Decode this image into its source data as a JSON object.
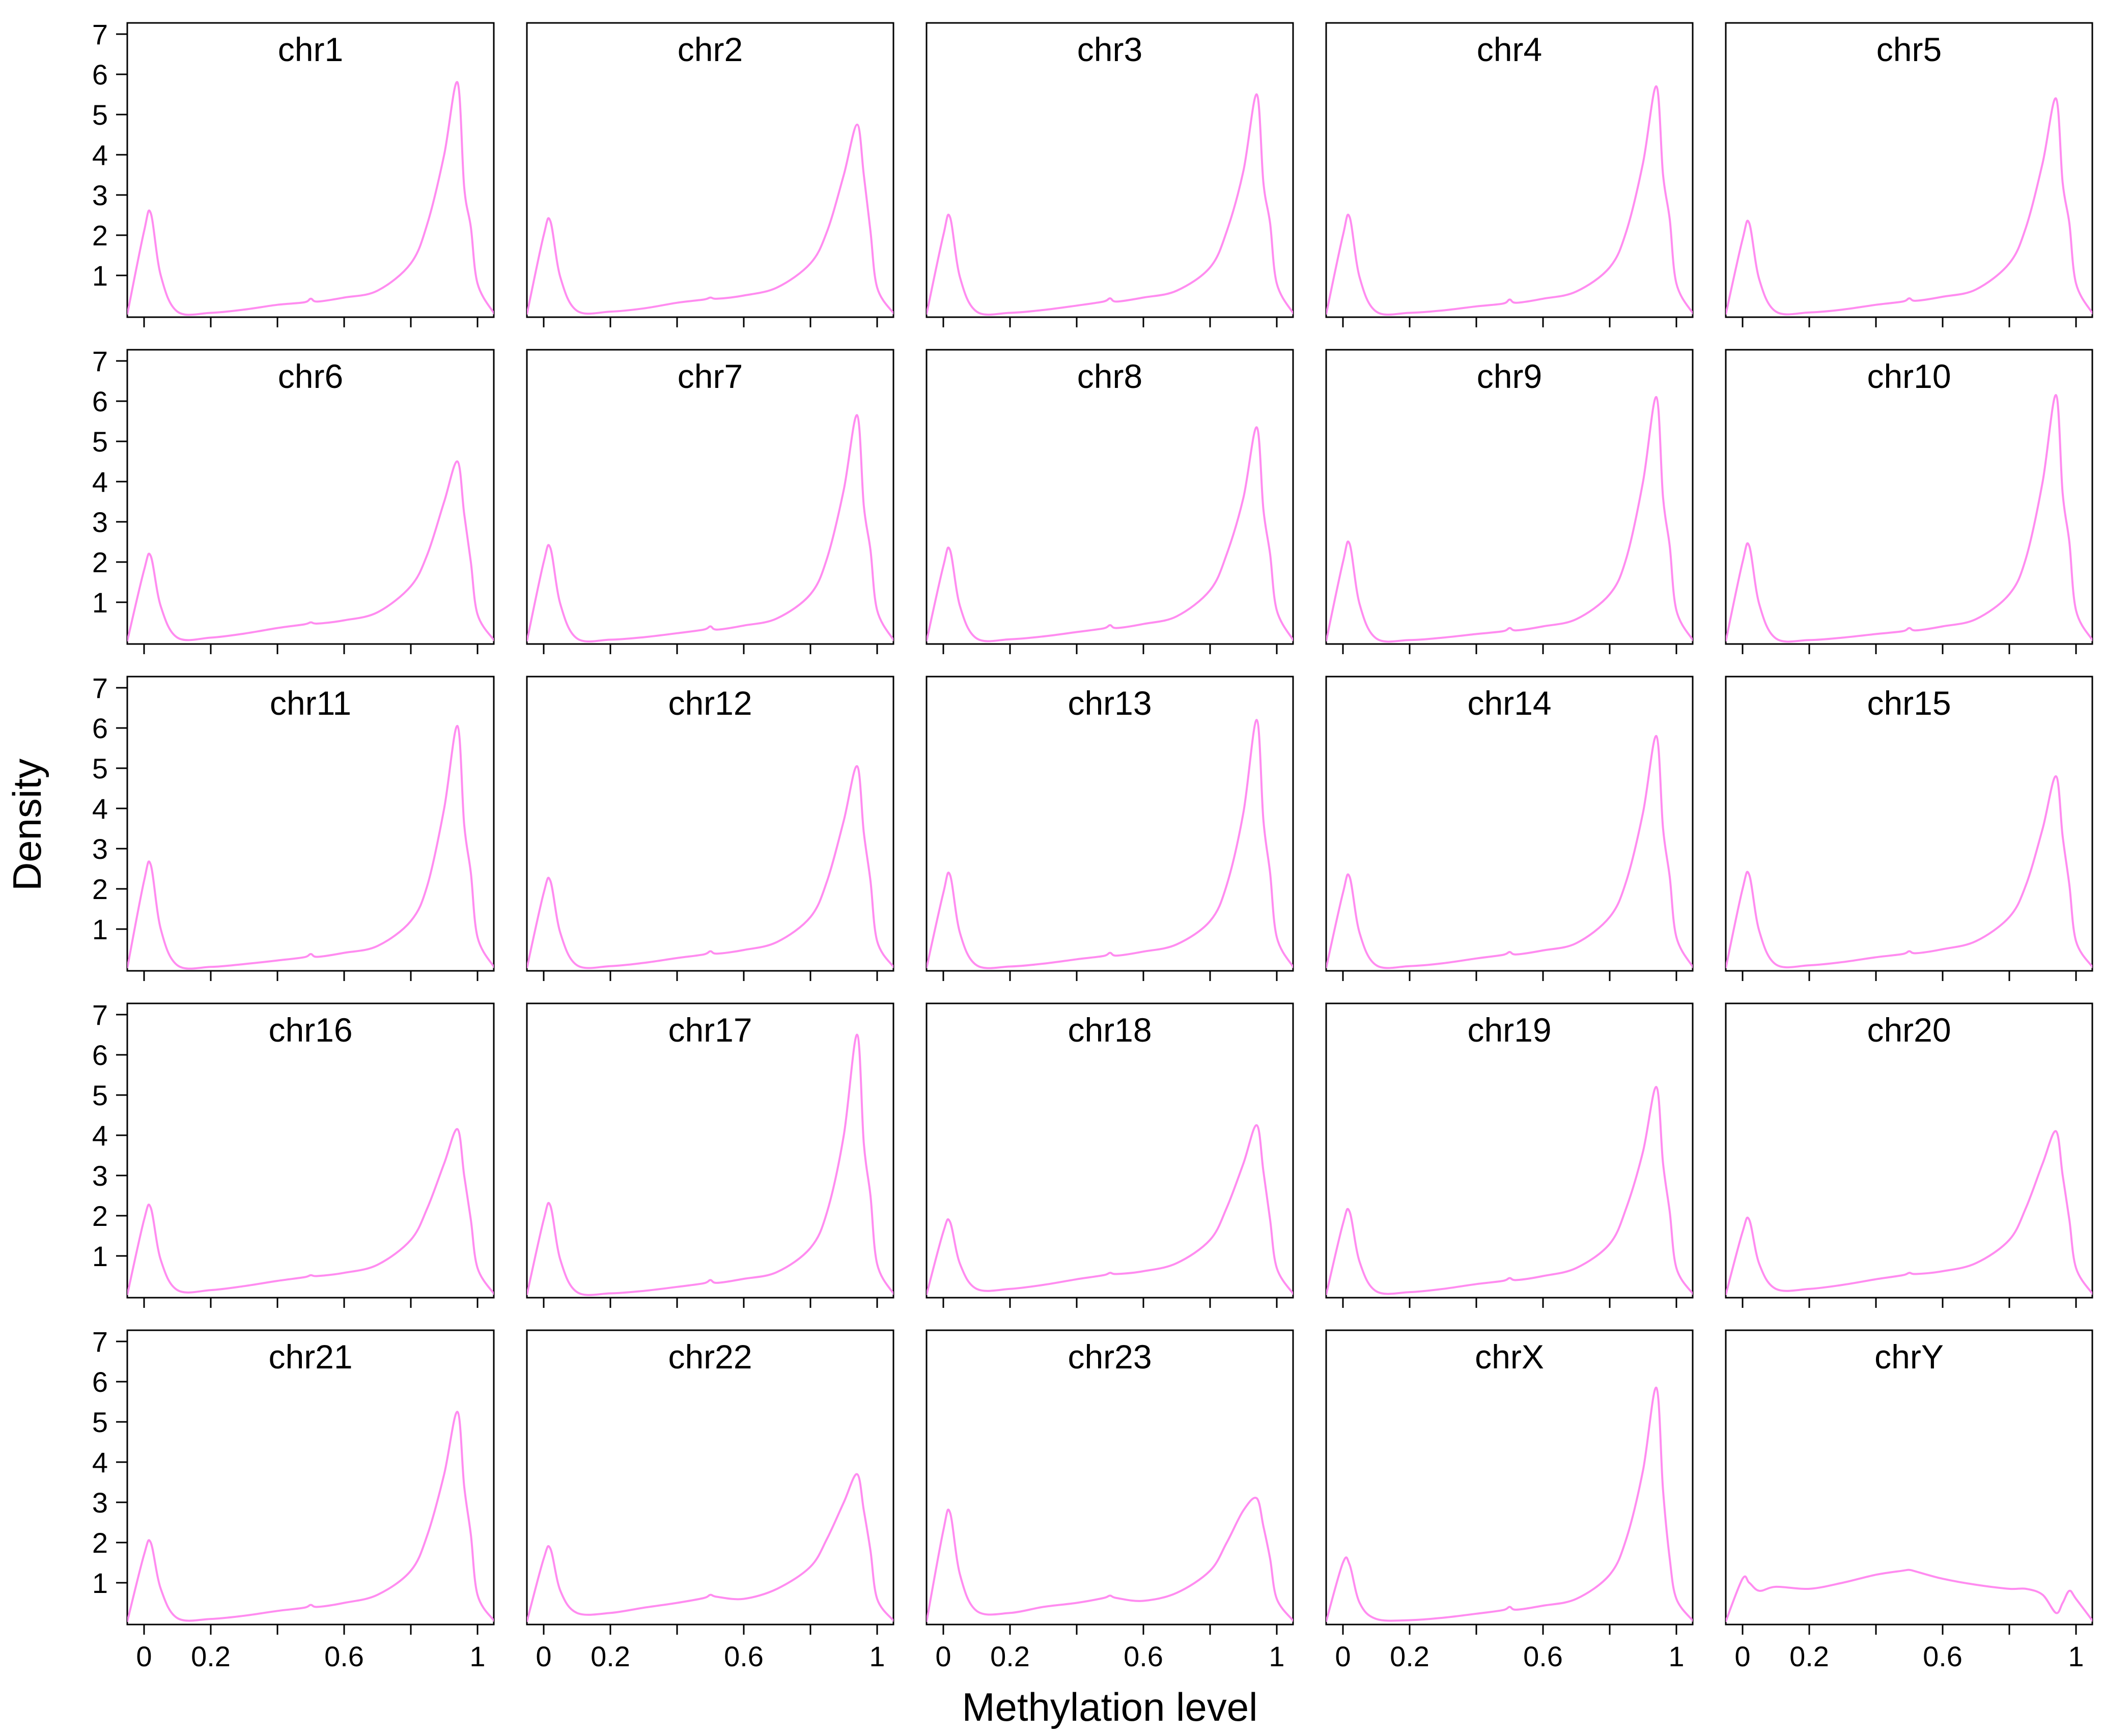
{
  "figure": {
    "xlabel": "Methylation level",
    "ylabel": "Density",
    "curve_color": "#ff8cf0"
  },
  "chart_data": {
    "type": "line",
    "layout": "5x5 small multiples",
    "xlim": [
      0,
      1
    ],
    "ylim": [
      0,
      7
    ],
    "x_ticks": [
      0,
      0.2,
      0.6,
      1
    ],
    "x_tick_labels": [
      "0",
      "0.2",
      "0.6",
      "1"
    ],
    "y_ticks": [
      1,
      2,
      3,
      4,
      5,
      6,
      7
    ],
    "y_tick_labels": [
      "1",
      "2",
      "3",
      "4",
      "5",
      "6",
      "7"
    ],
    "panels": [
      {
        "title": "chr1",
        "x": [
          -0.05,
          0,
          0.02,
          0.05,
          0.1,
          0.2,
          0.3,
          0.4,
          0.48,
          0.5,
          0.52,
          0.6,
          0.7,
          0.8,
          0.85,
          0.9,
          0.94,
          0.96,
          0.98,
          1,
          1.05
        ],
        "y": [
          0.05,
          2.1,
          2.55,
          1.0,
          0.1,
          0.07,
          0.15,
          0.27,
          0.33,
          0.42,
          0.35,
          0.45,
          0.62,
          1.3,
          2.3,
          4.0,
          5.8,
          3.2,
          2.2,
          0.8,
          0.05
        ]
      },
      {
        "title": "chr2",
        "x": [
          -0.05,
          0,
          0.02,
          0.05,
          0.1,
          0.2,
          0.3,
          0.4,
          0.48,
          0.5,
          0.52,
          0.6,
          0.7,
          0.8,
          0.85,
          0.9,
          0.94,
          0.96,
          0.98,
          1,
          1.05
        ],
        "y": [
          0.05,
          2.0,
          2.35,
          0.95,
          0.12,
          0.1,
          0.18,
          0.32,
          0.4,
          0.45,
          0.42,
          0.5,
          0.7,
          1.3,
          2.1,
          3.5,
          4.75,
          3.5,
          2.1,
          0.7,
          0.05
        ]
      },
      {
        "title": "chr3",
        "x": [
          -0.05,
          0,
          0.02,
          0.05,
          0.1,
          0.2,
          0.3,
          0.4,
          0.48,
          0.5,
          0.52,
          0.6,
          0.7,
          0.8,
          0.85,
          0.9,
          0.94,
          0.96,
          0.98,
          1,
          1.05
        ],
        "y": [
          0.05,
          2.0,
          2.45,
          0.95,
          0.1,
          0.07,
          0.14,
          0.25,
          0.35,
          0.43,
          0.35,
          0.45,
          0.62,
          1.2,
          2.1,
          3.6,
          5.5,
          3.3,
          2.3,
          0.8,
          0.05
        ]
      },
      {
        "title": "chr4",
        "x": [
          -0.05,
          0,
          0.02,
          0.05,
          0.1,
          0.2,
          0.3,
          0.4,
          0.48,
          0.5,
          0.52,
          0.6,
          0.7,
          0.8,
          0.85,
          0.9,
          0.94,
          0.96,
          0.98,
          1,
          1.05
        ],
        "y": [
          0.05,
          2.0,
          2.45,
          0.95,
          0.1,
          0.07,
          0.13,
          0.23,
          0.3,
          0.4,
          0.32,
          0.42,
          0.6,
          1.2,
          2.1,
          3.8,
          5.7,
          3.5,
          2.4,
          0.8,
          0.05
        ]
      },
      {
        "title": "chr5",
        "x": [
          -0.05,
          0,
          0.02,
          0.05,
          0.1,
          0.2,
          0.3,
          0.4,
          0.48,
          0.5,
          0.52,
          0.6,
          0.7,
          0.8,
          0.85,
          0.9,
          0.94,
          0.96,
          0.98,
          1,
          1.05
        ],
        "y": [
          0.05,
          1.9,
          2.3,
          0.9,
          0.1,
          0.08,
          0.15,
          0.27,
          0.35,
          0.43,
          0.37,
          0.47,
          0.65,
          1.3,
          2.2,
          3.8,
          5.4,
          3.3,
          2.3,
          0.8,
          0.05
        ]
      },
      {
        "title": "chr6",
        "x": [
          -0.05,
          0,
          0.02,
          0.05,
          0.1,
          0.2,
          0.3,
          0.4,
          0.48,
          0.5,
          0.52,
          0.6,
          0.7,
          0.8,
          0.85,
          0.9,
          0.94,
          0.96,
          0.98,
          1,
          1.05
        ],
        "y": [
          0.05,
          1.8,
          2.15,
          0.9,
          0.12,
          0.12,
          0.22,
          0.36,
          0.45,
          0.5,
          0.47,
          0.55,
          0.75,
          1.4,
          2.2,
          3.5,
          4.5,
          3.2,
          2.0,
          0.7,
          0.05
        ]
      },
      {
        "title": "chr7",
        "x": [
          -0.05,
          0,
          0.02,
          0.05,
          0.1,
          0.2,
          0.3,
          0.4,
          0.48,
          0.5,
          0.52,
          0.6,
          0.7,
          0.8,
          0.85,
          0.9,
          0.94,
          0.96,
          0.98,
          1,
          1.05
        ],
        "y": [
          0.05,
          2.0,
          2.35,
          0.95,
          0.1,
          0.07,
          0.13,
          0.23,
          0.32,
          0.4,
          0.32,
          0.42,
          0.6,
          1.2,
          2.1,
          3.8,
          5.65,
          3.4,
          2.3,
          0.8,
          0.05
        ]
      },
      {
        "title": "chr8",
        "x": [
          -0.05,
          0,
          0.02,
          0.05,
          0.1,
          0.2,
          0.3,
          0.4,
          0.48,
          0.5,
          0.52,
          0.6,
          0.7,
          0.8,
          0.85,
          0.9,
          0.94,
          0.96,
          0.98,
          1,
          1.05
        ],
        "y": [
          0.05,
          1.9,
          2.3,
          0.9,
          0.1,
          0.08,
          0.15,
          0.26,
          0.35,
          0.43,
          0.36,
          0.46,
          0.65,
          1.3,
          2.2,
          3.6,
          5.35,
          3.3,
          2.2,
          0.8,
          0.05
        ]
      },
      {
        "title": "chr9",
        "x": [
          -0.05,
          0,
          0.02,
          0.05,
          0.1,
          0.2,
          0.3,
          0.4,
          0.48,
          0.5,
          0.52,
          0.6,
          0.7,
          0.8,
          0.85,
          0.9,
          0.94,
          0.96,
          0.98,
          1,
          1.05
        ],
        "y": [
          0.05,
          2.0,
          2.45,
          0.95,
          0.1,
          0.06,
          0.12,
          0.21,
          0.28,
          0.36,
          0.3,
          0.4,
          0.58,
          1.2,
          2.1,
          4.0,
          6.1,
          3.6,
          2.4,
          0.8,
          0.05
        ]
      },
      {
        "title": "chr10",
        "x": [
          -0.05,
          0,
          0.02,
          0.05,
          0.1,
          0.2,
          0.3,
          0.4,
          0.48,
          0.5,
          0.52,
          0.6,
          0.7,
          0.8,
          0.85,
          0.9,
          0.94,
          0.96,
          0.98,
          1,
          1.05
        ],
        "y": [
          0.05,
          2.0,
          2.4,
          0.95,
          0.1,
          0.06,
          0.12,
          0.21,
          0.28,
          0.36,
          0.3,
          0.4,
          0.58,
          1.2,
          2.1,
          4.0,
          6.15,
          3.7,
          2.5,
          0.8,
          0.05
        ]
      },
      {
        "title": "chr11",
        "x": [
          -0.05,
          0,
          0.02,
          0.05,
          0.1,
          0.2,
          0.3,
          0.4,
          0.48,
          0.5,
          0.52,
          0.6,
          0.7,
          0.8,
          0.85,
          0.9,
          0.94,
          0.96,
          0.98,
          1,
          1.05
        ],
        "y": [
          0.05,
          2.2,
          2.6,
          1.0,
          0.1,
          0.06,
          0.13,
          0.22,
          0.3,
          0.38,
          0.31,
          0.41,
          0.58,
          1.2,
          2.1,
          4.0,
          6.05,
          3.6,
          2.4,
          0.8,
          0.05
        ]
      },
      {
        "title": "chr12",
        "x": [
          -0.05,
          0,
          0.02,
          0.05,
          0.1,
          0.2,
          0.3,
          0.4,
          0.48,
          0.5,
          0.52,
          0.6,
          0.7,
          0.8,
          0.85,
          0.9,
          0.94,
          0.96,
          0.98,
          1,
          1.05
        ],
        "y": [
          0.05,
          1.9,
          2.2,
          0.9,
          0.1,
          0.08,
          0.16,
          0.28,
          0.37,
          0.45,
          0.39,
          0.48,
          0.68,
          1.3,
          2.2,
          3.7,
          5.05,
          3.4,
          2.2,
          0.7,
          0.05
        ]
      },
      {
        "title": "chr13",
        "x": [
          -0.05,
          0,
          0.02,
          0.05,
          0.1,
          0.2,
          0.3,
          0.4,
          0.48,
          0.5,
          0.52,
          0.6,
          0.7,
          0.8,
          0.85,
          0.9,
          0.94,
          0.96,
          0.98,
          1,
          1.05
        ],
        "y": [
          0.05,
          1.9,
          2.35,
          0.9,
          0.1,
          0.07,
          0.14,
          0.25,
          0.33,
          0.41,
          0.34,
          0.44,
          0.62,
          1.2,
          2.1,
          3.9,
          6.2,
          3.7,
          2.4,
          0.8,
          0.05
        ]
      },
      {
        "title": "chr14",
        "x": [
          -0.05,
          0,
          0.02,
          0.05,
          0.1,
          0.2,
          0.3,
          0.4,
          0.48,
          0.5,
          0.52,
          0.6,
          0.7,
          0.8,
          0.85,
          0.9,
          0.94,
          0.96,
          0.98,
          1,
          1.05
        ],
        "y": [
          0.05,
          1.9,
          2.3,
          0.9,
          0.1,
          0.08,
          0.15,
          0.27,
          0.36,
          0.43,
          0.37,
          0.47,
          0.65,
          1.3,
          2.2,
          3.9,
          5.8,
          3.5,
          2.3,
          0.8,
          0.05
        ]
      },
      {
        "title": "chr15",
        "x": [
          -0.05,
          0,
          0.02,
          0.05,
          0.1,
          0.2,
          0.3,
          0.4,
          0.48,
          0.5,
          0.52,
          0.6,
          0.7,
          0.8,
          0.85,
          0.9,
          0.94,
          0.96,
          0.98,
          1,
          1.05
        ],
        "y": [
          0.05,
          2.0,
          2.35,
          0.95,
          0.12,
          0.1,
          0.18,
          0.3,
          0.38,
          0.45,
          0.4,
          0.5,
          0.7,
          1.3,
          2.1,
          3.5,
          4.8,
          3.3,
          2.1,
          0.7,
          0.05
        ]
      },
      {
        "title": "chr16",
        "x": [
          -0.05,
          0,
          0.02,
          0.05,
          0.1,
          0.2,
          0.3,
          0.4,
          0.48,
          0.5,
          0.52,
          0.6,
          0.7,
          0.8,
          0.85,
          0.9,
          0.94,
          0.96,
          0.98,
          1,
          1.05
        ],
        "y": [
          0.05,
          1.9,
          2.2,
          0.9,
          0.15,
          0.15,
          0.25,
          0.38,
          0.47,
          0.52,
          0.5,
          0.58,
          0.78,
          1.4,
          2.2,
          3.3,
          4.15,
          3.0,
          1.9,
          0.7,
          0.05
        ]
      },
      {
        "title": "chr17",
        "x": [
          -0.05,
          0,
          0.02,
          0.05,
          0.1,
          0.2,
          0.3,
          0.4,
          0.48,
          0.5,
          0.52,
          0.6,
          0.7,
          0.8,
          0.85,
          0.9,
          0.94,
          0.96,
          0.98,
          1,
          1.05
        ],
        "y": [
          0.05,
          1.9,
          2.25,
          0.9,
          0.1,
          0.07,
          0.13,
          0.23,
          0.32,
          0.4,
          0.33,
          0.43,
          0.6,
          1.2,
          2.1,
          4.0,
          6.5,
          3.8,
          2.5,
          0.8,
          0.05
        ]
      },
      {
        "title": "chr18",
        "x": [
          -0.05,
          0,
          0.02,
          0.05,
          0.1,
          0.2,
          0.3,
          0.4,
          0.48,
          0.5,
          0.52,
          0.6,
          0.7,
          0.8,
          0.85,
          0.9,
          0.94,
          0.96,
          0.98,
          1,
          1.05
        ],
        "y": [
          0.05,
          1.6,
          1.85,
          0.8,
          0.18,
          0.18,
          0.28,
          0.42,
          0.52,
          0.58,
          0.55,
          0.62,
          0.82,
          1.4,
          2.2,
          3.3,
          4.25,
          3.1,
          1.9,
          0.7,
          0.05
        ]
      },
      {
        "title": "chr19",
        "x": [
          -0.05,
          0,
          0.02,
          0.05,
          0.1,
          0.2,
          0.3,
          0.4,
          0.48,
          0.5,
          0.52,
          0.6,
          0.7,
          0.8,
          0.85,
          0.9,
          0.94,
          0.96,
          0.98,
          1,
          1.05
        ],
        "y": [
          0.05,
          1.8,
          2.1,
          0.85,
          0.12,
          0.1,
          0.18,
          0.3,
          0.38,
          0.45,
          0.4,
          0.5,
          0.7,
          1.3,
          2.2,
          3.6,
          5.2,
          3.3,
          2.1,
          0.7,
          0.05
        ]
      },
      {
        "title": "chr20",
        "x": [
          -0.05,
          0,
          0.02,
          0.05,
          0.1,
          0.2,
          0.3,
          0.4,
          0.48,
          0.5,
          0.52,
          0.6,
          0.7,
          0.8,
          0.85,
          0.9,
          0.94,
          0.96,
          0.98,
          1,
          1.05
        ],
        "y": [
          0.05,
          1.6,
          1.9,
          0.8,
          0.18,
          0.18,
          0.28,
          0.42,
          0.52,
          0.58,
          0.55,
          0.62,
          0.82,
          1.4,
          2.2,
          3.3,
          4.1,
          3.0,
          1.9,
          0.7,
          0.05
        ]
      },
      {
        "title": "chr21",
        "x": [
          -0.05,
          0,
          0.02,
          0.05,
          0.1,
          0.2,
          0.3,
          0.4,
          0.48,
          0.5,
          0.52,
          0.6,
          0.7,
          0.8,
          0.85,
          0.9,
          0.94,
          0.96,
          0.98,
          1,
          1.05
        ],
        "y": [
          0.05,
          1.7,
          2.0,
          0.85,
          0.12,
          0.1,
          0.18,
          0.3,
          0.38,
          0.45,
          0.4,
          0.5,
          0.7,
          1.3,
          2.2,
          3.7,
          5.25,
          3.4,
          2.2,
          0.7,
          0.05
        ]
      },
      {
        "title": "chr22",
        "x": [
          -0.05,
          0,
          0.02,
          0.05,
          0.1,
          0.2,
          0.3,
          0.4,
          0.48,
          0.5,
          0.52,
          0.6,
          0.7,
          0.8,
          0.85,
          0.9,
          0.94,
          0.96,
          0.98,
          1,
          1.05
        ],
        "y": [
          0.05,
          1.6,
          1.85,
          0.8,
          0.25,
          0.25,
          0.38,
          0.5,
          0.62,
          0.7,
          0.65,
          0.6,
          0.85,
          1.4,
          2.1,
          3.0,
          3.7,
          2.8,
          1.8,
          0.6,
          0.05
        ]
      },
      {
        "title": "chr23",
        "x": [
          -0.05,
          0,
          0.02,
          0.05,
          0.1,
          0.2,
          0.3,
          0.4,
          0.48,
          0.5,
          0.52,
          0.6,
          0.7,
          0.8,
          0.85,
          0.9,
          0.94,
          0.96,
          0.98,
          1,
          1.05
        ],
        "y": [
          0.05,
          2.3,
          2.75,
          1.2,
          0.3,
          0.25,
          0.4,
          0.5,
          0.62,
          0.68,
          0.62,
          0.55,
          0.75,
          1.3,
          2.0,
          2.8,
          3.1,
          2.4,
          1.6,
          0.6,
          0.05
        ]
      },
      {
        "title": "chrX",
        "x": [
          -0.05,
          0,
          0.02,
          0.05,
          0.1,
          0.2,
          0.3,
          0.4,
          0.48,
          0.5,
          0.52,
          0.6,
          0.7,
          0.8,
          0.85,
          0.9,
          0.94,
          0.96,
          0.98,
          1,
          1.05
        ],
        "y": [
          0.05,
          1.5,
          1.45,
          0.5,
          0.1,
          0.07,
          0.13,
          0.23,
          0.32,
          0.4,
          0.33,
          0.43,
          0.6,
          1.2,
          2.1,
          3.8,
          5.85,
          3.3,
          1.6,
          0.6,
          0.05
        ]
      },
      {
        "title": "chrY",
        "x": [
          -0.05,
          0,
          0.02,
          0.05,
          0.1,
          0.2,
          0.3,
          0.4,
          0.48,
          0.5,
          0.52,
          0.6,
          0.7,
          0.8,
          0.85,
          0.9,
          0.94,
          0.96,
          0.98,
          1,
          1.05
        ],
        "y": [
          0.05,
          1.1,
          1.0,
          0.8,
          0.9,
          0.85,
          1.0,
          1.2,
          1.3,
          1.32,
          1.28,
          1.1,
          0.95,
          0.85,
          0.85,
          0.7,
          0.25,
          0.5,
          0.8,
          0.6,
          0.05
        ]
      }
    ]
  }
}
